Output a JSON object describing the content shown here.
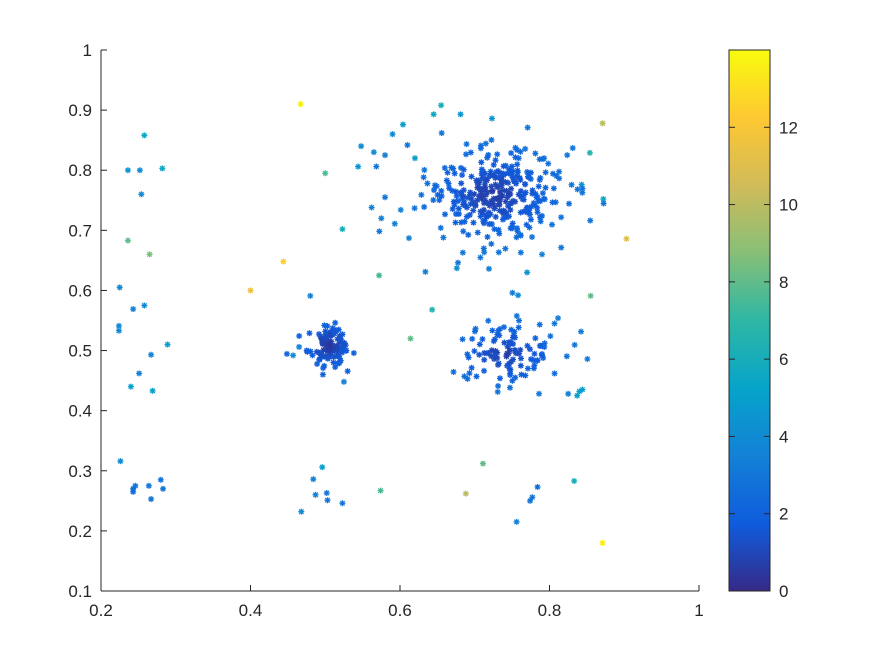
{
  "chart_data": {
    "type": "scatter",
    "title": "",
    "xlabel": "",
    "ylabel": "",
    "xlim": [
      0.2,
      1
    ],
    "ylim": [
      0.1,
      1
    ],
    "x_ticks": [
      "0.2",
      "0.4",
      "0.6",
      "0.8",
      "1"
    ],
    "y_ticks": [
      "0.1",
      "0.2",
      "0.3",
      "0.4",
      "0.5",
      "0.6",
      "0.7",
      "0.8",
      "0.9",
      "1"
    ],
    "grid": false,
    "marker": "asterisk",
    "colormap": "parula",
    "colorbar": {
      "range": [
        0,
        14
      ],
      "ticks": [
        "0",
        "2",
        "4",
        "6",
        "8",
        "10",
        "12"
      ],
      "palette": [
        "#352a87",
        "#0f5cdd",
        "#1481d6",
        "#06a4ca",
        "#2eb7a4",
        "#87bf77",
        "#d1bb59",
        "#fec832",
        "#f9fb0e"
      ]
    },
    "points_note_cluster_generation": "",
    "points": [
      [
        0.258,
        0.858,
        5.5
      ],
      [
        0.236,
        0.8,
        4.5
      ],
      [
        0.252,
        0.8,
        4.0
      ],
      [
        0.282,
        0.803,
        5.5
      ],
      [
        0.254,
        0.76,
        4.0
      ],
      [
        0.236,
        0.683,
        8.0
      ],
      [
        0.265,
        0.66,
        8.5
      ],
      [
        0.225,
        0.605,
        4.0
      ],
      [
        0.243,
        0.569,
        3.5
      ],
      [
        0.258,
        0.575,
        4.0
      ],
      [
        0.224,
        0.541,
        4.0
      ],
      [
        0.224,
        0.533,
        4.0
      ],
      [
        0.289,
        0.51,
        5.0
      ],
      [
        0.267,
        0.493,
        3.5
      ],
      [
        0.251,
        0.462,
        3.5
      ],
      [
        0.24,
        0.44,
        5.0
      ],
      [
        0.269,
        0.433,
        5.0
      ],
      [
        0.226,
        0.316,
        4.0
      ],
      [
        0.246,
        0.275,
        3.0
      ],
      [
        0.243,
        0.27,
        2.5
      ],
      [
        0.243,
        0.265,
        2.5
      ],
      [
        0.264,
        0.275,
        3.0
      ],
      [
        0.28,
        0.285,
        3.0
      ],
      [
        0.283,
        0.27,
        3.0
      ],
      [
        0.267,
        0.253,
        3.0
      ],
      [
        0.467,
        0.91,
        13.5
      ],
      [
        0.444,
        0.648,
        12.5
      ],
      [
        0.4,
        0.6,
        11.5
      ],
      [
        0.5,
        0.795,
        7.5
      ],
      [
        0.523,
        0.702,
        6.0
      ],
      [
        0.572,
        0.625,
        7.5
      ],
      [
        0.614,
        0.52,
        8.0
      ],
      [
        0.48,
        0.591,
        3.5
      ],
      [
        0.465,
        0.506,
        3.5
      ],
      [
        0.457,
        0.492,
        4.0
      ],
      [
        0.525,
        0.448,
        3.5
      ],
      [
        0.496,
        0.306,
        5.0
      ],
      [
        0.484,
        0.286,
        3.5
      ],
      [
        0.487,
        0.26,
        3.5
      ],
      [
        0.502,
        0.263,
        3.0
      ],
      [
        0.503,
        0.251,
        3.0
      ],
      [
        0.523,
        0.246,
        3.0
      ],
      [
        0.468,
        0.232,
        4.0
      ],
      [
        0.574,
        0.267,
        7.5
      ],
      [
        0.688,
        0.262,
        10.0
      ],
      [
        0.711,
        0.312,
        8.0
      ],
      [
        0.756,
        0.215,
        3.5
      ],
      [
        0.774,
        0.25,
        3.0
      ],
      [
        0.777,
        0.256,
        3.0
      ],
      [
        0.784,
        0.273,
        2.5
      ],
      [
        0.833,
        0.283,
        6.0
      ],
      [
        0.871,
        0.18,
        13.5
      ],
      [
        0.871,
        0.878,
        10.0
      ],
      [
        0.872,
        0.752,
        5.5
      ],
      [
        0.903,
        0.686,
        11.0
      ],
      [
        0.854,
        0.829,
        6.5
      ],
      [
        0.855,
        0.591,
        8.0
      ],
      [
        0.843,
        0.776,
        4.5
      ],
      [
        0.844,
        0.435,
        5.0
      ],
      [
        0.84,
        0.432,
        5.0
      ],
      [
        0.837,
        0.425,
        5.0
      ],
      [
        0.825,
        0.428,
        3.5
      ],
      [
        0.655,
        0.908,
        6.0
      ],
      [
        0.645,
        0.893,
        5.5
      ],
      [
        0.681,
        0.893,
        4.5
      ],
      [
        0.723,
        0.886,
        4.5
      ],
      [
        0.604,
        0.876,
        5.0
      ],
      [
        0.59,
        0.86,
        4.0
      ],
      [
        0.643,
        0.568,
        6.5
      ],
      [
        0.62,
        0.82,
        5.0
      ],
      [
        0.548,
        0.84,
        4.0
      ],
      [
        0.565,
        0.83,
        4.0
      ],
      [
        0.544,
        0.806,
        4.5
      ],
      [
        0.58,
        0.825,
        3.5
      ],
      [
        0.593,
        0.711,
        3.5
      ],
      [
        0.562,
        0.738,
        3.5
      ],
      [
        0.575,
        0.72,
        3.5
      ],
      [
        0.58,
        0.755,
        3.0
      ],
      [
        0.601,
        0.734,
        3.5
      ],
      [
        0.612,
        0.687,
        3.5
      ],
      [
        0.634,
        0.631,
        3.5
      ],
      [
        0.658,
        0.688,
        3.0
      ],
      [
        0.676,
        0.637,
        4.0
      ],
      [
        0.719,
        0.636,
        3.5
      ],
      [
        0.77,
        0.63,
        4.5
      ],
      [
        0.79,
        0.66,
        3.5
      ],
      [
        0.758,
        0.592,
        4.0
      ]
    ],
    "clusters": [
      {
        "name": "",
        "center": [
          0.725,
          0.76
        ],
        "sx": 0.045,
        "sy": 0.04,
        "count": 320,
        "cmin": 0.3,
        "cmax": 3.0
      },
      {
        "name": "",
        "center": [
          0.505,
          0.508
        ],
        "sx": 0.014,
        "sy": 0.016,
        "count": 110,
        "cmin": 0.3,
        "cmax": 2.0
      },
      {
        "name": "",
        "center": [
          0.74,
          0.495
        ],
        "sx": 0.04,
        "sy": 0.032,
        "count": 110,
        "cmin": 0.5,
        "cmax": 3.2
      }
    ]
  }
}
